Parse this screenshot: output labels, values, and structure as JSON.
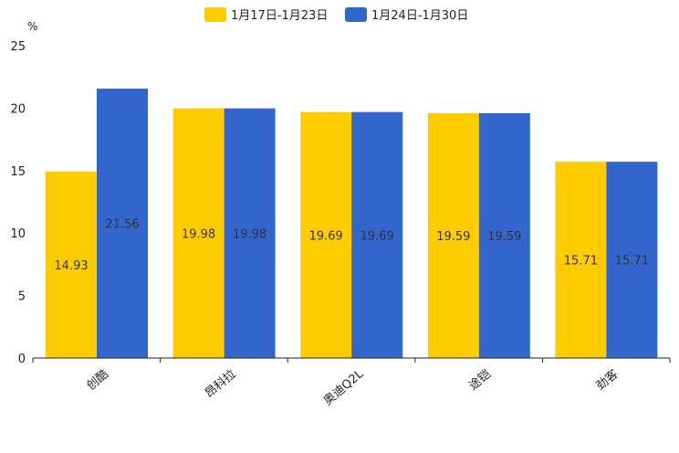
{
  "chart_data": {
    "type": "bar",
    "title": "",
    "xlabel": "",
    "ylabel": "%",
    "ylim": [
      0,
      25
    ],
    "yticks": [
      0,
      5,
      10,
      15,
      20,
      25
    ],
    "categories": [
      "创酷",
      "昂科拉",
      "奥迪Q2L",
      "途铠",
      "劲客"
    ],
    "series": [
      {
        "name": "1月17日-1月23日",
        "color": "#ffcc00",
        "values": [
          14.93,
          19.98,
          19.69,
          19.59,
          15.71
        ],
        "labels": [
          "14.93",
          "19.98",
          "19.69",
          "19.59",
          "15.71"
        ]
      },
      {
        "name": "1月24日-1月30日",
        "color": "#3366cc",
        "values": [
          21.56,
          19.98,
          19.69,
          19.59,
          15.71
        ],
        "labels": [
          "21.56",
          "19.98",
          "19.69",
          "19.59",
          "15.71"
        ]
      }
    ],
    "legend_position": "top-center",
    "grid": false
  }
}
